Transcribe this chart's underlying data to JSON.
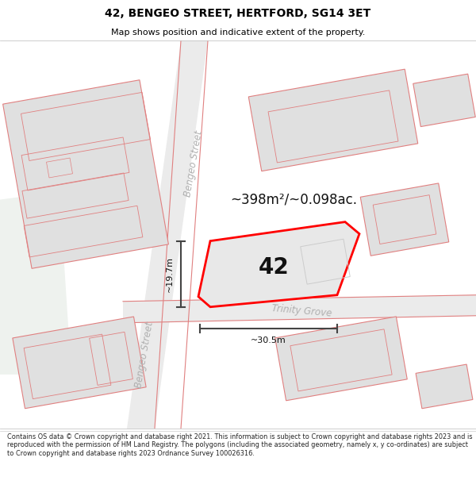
{
  "title": "42, BENGEO STREET, HERTFORD, SG14 3ET",
  "subtitle": "Map shows position and indicative extent of the property.",
  "footer": "Contains OS data © Crown copyright and database right 2021. This information is subject to Crown copyright and database rights 2023 and is reproduced with the permission of HM Land Registry. The polygons (including the associated geometry, namely x, y co-ordinates) are subject to Crown copyright and database rights 2023 Ordnance Survey 100026316.",
  "area_label": "~398m²/~0.098ac.",
  "property_number": "42",
  "dim_width": "~30.5m",
  "dim_height": "~19.7m",
  "street_bengeo_upper": "Bengeo Street",
  "street_bengeo_lower": "Bengeo Street",
  "street_trinity": "Trinity Grove",
  "map_bg": "#ffffff",
  "road_fill": "#ebebeb",
  "building_fill": "#e0e0e0",
  "building_edge": "#e08080",
  "road_edge": "#e08080",
  "property_outline": "#ff0000",
  "property_fill": "#e8e8e8",
  "dim_line_color": "#444444",
  "title_color": "#000000",
  "street_label_color": "#b0b0b0",
  "footer_color": "#222222",
  "greenish": "#eef2ee"
}
